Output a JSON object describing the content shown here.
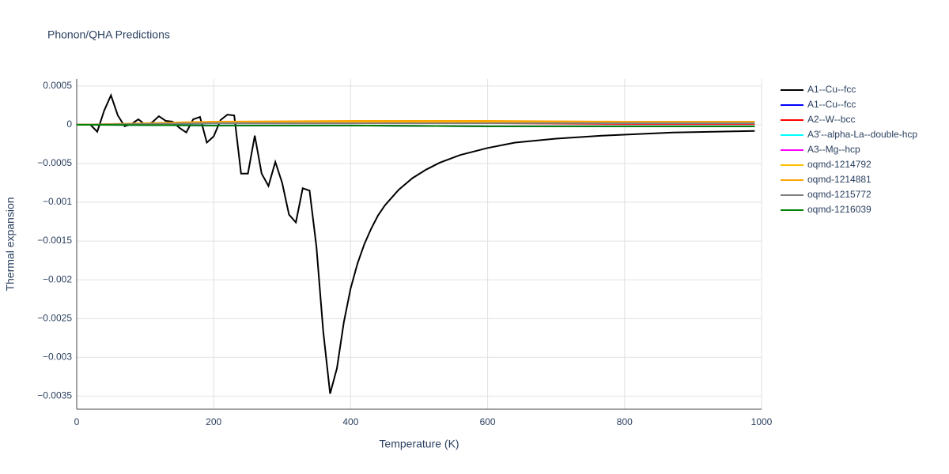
{
  "chart_data": {
    "type": "line",
    "title": "Phonon/QHA Predictions",
    "x_label": "Temperature (K)",
    "y_label": "Thermal expansion",
    "xlim": [
      0,
      1000
    ],
    "xticks": [
      0,
      200,
      400,
      600,
      800,
      1000
    ],
    "ylim": [
      -0.00367,
      0.00059
    ],
    "yticks": [
      0.0005,
      0,
      {
        "value": -0.0005,
        "label": "−0.0005"
      },
      {
        "value": -0.001,
        "label": "−0.001"
      },
      {
        "value": -0.0015,
        "label": "−0.0015"
      },
      {
        "value": -0.002,
        "label": "−0.002"
      },
      {
        "value": -0.0025,
        "label": "−0.0025"
      },
      {
        "value": -0.003,
        "label": "−0.003"
      },
      {
        "value": -0.0035,
        "label": "−0.0035"
      }
    ],
    "grid": true,
    "series": [
      {
        "name": "A1--Cu--fcc",
        "color": "#000000",
        "x": [
          0,
          20,
          30,
          40,
          50,
          60,
          70,
          80,
          90,
          100,
          110,
          120,
          130,
          140,
          150,
          160,
          170,
          180,
          190,
          200,
          210,
          220,
          230,
          240,
          250,
          260,
          270,
          280,
          290,
          300,
          310,
          320,
          330,
          340,
          350,
          360,
          370,
          380,
          390,
          400,
          410,
          420,
          430,
          440,
          450,
          470,
          490,
          510,
          530,
          560,
          600,
          640,
          700,
          770,
          870,
          990
        ],
        "values": [
          0,
          0,
          -9e-05,
          0.00018,
          0.00038,
          0.00012,
          -2e-05,
          1e-05,
          7e-05,
          0,
          3e-05,
          0.00011,
          5e-05,
          4e-05,
          -4e-05,
          -0.0001,
          7e-05,
          0.0001,
          -0.00023,
          -0.00015,
          6e-05,
          0.00013,
          0.00012,
          -0.00063,
          -0.00063,
          -0.00014,
          -0.00063,
          -0.00079,
          -0.00048,
          -0.00075,
          -0.00116,
          -0.00126,
          -0.00082,
          -0.00085,
          -0.00157,
          -0.00267,
          -0.00347,
          -0.00314,
          -0.00255,
          -0.00211,
          -0.00179,
          -0.00154,
          -0.00134,
          -0.00117,
          -0.00104,
          -0.00084,
          -0.00069,
          -0.00058,
          -0.00049,
          -0.00039,
          -0.0003,
          -0.00023,
          -0.00018,
          -0.00014,
          -0.0001,
          -8e-05
        ]
      },
      {
        "name": "A1--Cu--fcc",
        "color": "#0000ff",
        "x": [
          0,
          200,
          400,
          600,
          800,
          990
        ],
        "values": [
          0,
          -1e-05,
          -1e-05,
          -2e-05,
          -2e-05,
          -2e-05
        ]
      },
      {
        "name": "A2--W--bcc",
        "color": "#ff0000",
        "x": [
          0,
          200,
          400,
          600,
          800,
          990
        ],
        "values": [
          0,
          2e-05,
          2e-05,
          2e-05,
          1e-05,
          1e-05
        ]
      },
      {
        "name": "A3'--alpha-La--double-hcp",
        "color": "#00ffff",
        "x": [
          0,
          200,
          400,
          600,
          800,
          990
        ],
        "values": [
          0,
          2e-05,
          3e-05,
          3e-05,
          2e-05,
          2e-05
        ]
      },
      {
        "name": "A3--Mg--hcp",
        "color": "#ff00ff",
        "x": [
          0,
          200,
          400,
          600,
          800,
          990
        ],
        "values": [
          0,
          3e-05,
          3e-05,
          3e-05,
          3e-05,
          3e-05
        ]
      },
      {
        "name": "oqmd-1214792",
        "color": "#ffbf00",
        "x": [
          0,
          200,
          400,
          600,
          800,
          990
        ],
        "values": [
          0,
          3e-05,
          4e-05,
          4e-05,
          3e-05,
          3e-05
        ]
      },
      {
        "name": "oqmd-1214881",
        "color": "#ffa500",
        "x": [
          0,
          200,
          400,
          600,
          800,
          990
        ],
        "values": [
          0,
          4e-05,
          5e-05,
          5e-05,
          4e-05,
          4e-05
        ]
      },
      {
        "name": "oqmd-1215772",
        "color": "#808080",
        "x": [
          0,
          200,
          400,
          600,
          800,
          990
        ],
        "values": [
          0,
          2e-05,
          2e-05,
          2e-05,
          2e-05,
          2e-05
        ]
      },
      {
        "name": "oqmd-1216039",
        "color": "#008000",
        "x": [
          0,
          200,
          400,
          600,
          800,
          990
        ],
        "values": [
          0,
          -1e-05,
          -1e-05,
          -2e-05,
          -2e-05,
          -2e-05
        ]
      }
    ]
  }
}
